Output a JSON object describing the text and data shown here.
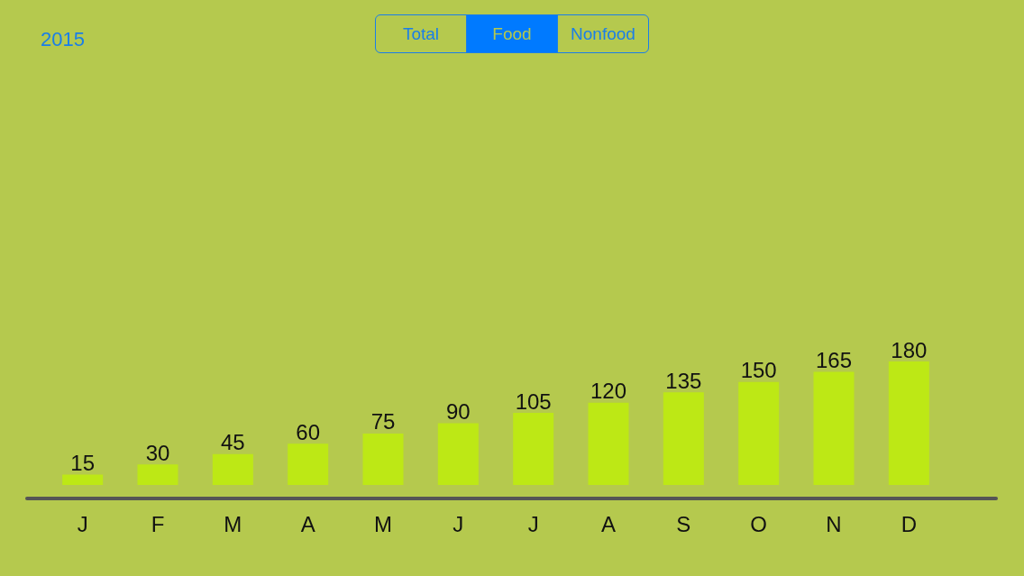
{
  "chart_data": {
    "type": "bar",
    "title": "2015",
    "annotations": [
      "Total",
      "Food",
      "Nonfood"
    ],
    "categories": [
      "J",
      "F",
      "M",
      "A",
      "M",
      "J",
      "J",
      "A",
      "S",
      "O",
      "N",
      "D"
    ],
    "values": [
      15,
      30,
      45,
      60,
      75,
      90,
      105,
      120,
      135,
      150,
      165,
      180
    ],
    "color": "#bde815",
    "data_labels": true,
    "grid": false
  }
}
